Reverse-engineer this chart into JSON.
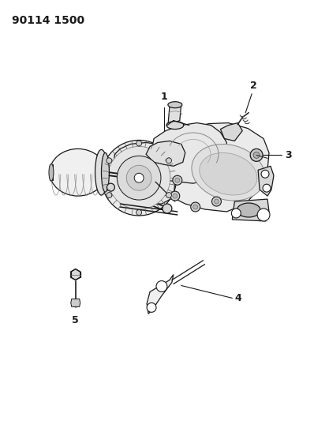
{
  "title": "90114 1500",
  "background_color": "#ffffff",
  "title_fontsize": 10,
  "title_fontweight": "bold",
  "line_color": "#1a1a1a",
  "fig_width": 3.98,
  "fig_height": 5.33,
  "dpi": 100,
  "label_fontsize": 9,
  "label_fontweight": "bold",
  "leader_lw": 0.8,
  "part_lw": 0.9,
  "gray_fill": "#d8d8d8",
  "light_fill": "#f0f0f0",
  "mid_fill": "#c8c8c8"
}
